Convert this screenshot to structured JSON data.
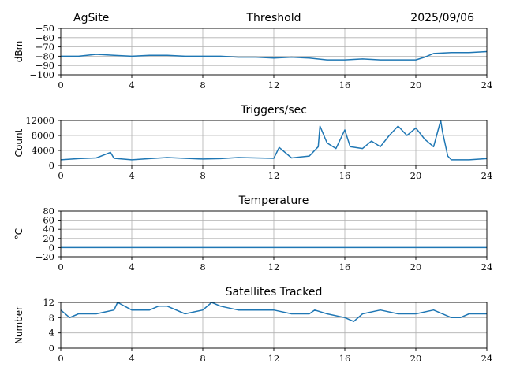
{
  "header": {
    "site": "AgSite",
    "date": "2025/09/06"
  },
  "colors": {
    "series": "#1f77b4",
    "grid": "#b0b0b0"
  },
  "chart_data": [
    {
      "id": "threshold",
      "type": "line",
      "title": "Threshold",
      "xlabel": "",
      "ylabel": "dBm",
      "xlim": [
        0,
        24
      ],
      "ylim": [
        -100,
        -50
      ],
      "xticks": [
        0,
        4,
        8,
        12,
        16,
        20,
        24
      ],
      "yticks": [
        -50,
        -60,
        -70,
        -80,
        -90,
        -100
      ],
      "ytick_labels": [
        "−50",
        "−60",
        "−70",
        "−80",
        "−90",
        "−100"
      ],
      "grid": true,
      "series": [
        {
          "name": "Threshold",
          "x": [
            0,
            1,
            2,
            3,
            4,
            5,
            6,
            7,
            8,
            9,
            10,
            11,
            12,
            13,
            14,
            15,
            16,
            17,
            18,
            19,
            20,
            20.5,
            21,
            22,
            23,
            24
          ],
          "y": [
            -80,
            -80,
            -78,
            -79,
            -80,
            -79,
            -79,
            -80,
            -80,
            -80,
            -81,
            -81,
            -82,
            -81,
            -82,
            -84,
            -84,
            -83,
            -84,
            -84,
            -84,
            -81,
            -77,
            -76,
            -76,
            -75
          ]
        }
      ]
    },
    {
      "id": "triggers",
      "type": "line",
      "title": "Triggers/sec",
      "xlabel": "",
      "ylabel": "Count",
      "xlim": [
        0,
        24
      ],
      "ylim": [
        0,
        12000
      ],
      "xticks": [
        0,
        4,
        8,
        12,
        16,
        20,
        24
      ],
      "yticks": [
        0,
        4000,
        8000,
        12000
      ],
      "ytick_labels": [
        "0",
        "4000",
        "8000",
        "12000"
      ],
      "grid": true,
      "series": [
        {
          "name": "Triggers",
          "x": [
            0,
            1,
            2,
            2.8,
            3,
            4,
            5,
            6,
            7,
            8,
            9,
            10,
            11,
            12,
            12.3,
            13,
            14,
            14.5,
            14.6,
            15,
            15.5,
            16,
            16.3,
            17,
            17.5,
            18,
            18.5,
            19,
            19.5,
            20,
            20.5,
            21,
            21.4,
            21.5,
            21.8,
            22,
            23,
            24
          ],
          "y": [
            1500,
            1800,
            2000,
            3500,
            1900,
            1500,
            1800,
            2100,
            1900,
            1700,
            1800,
            2100,
            2000,
            1900,
            4800,
            2000,
            2500,
            5000,
            10500,
            6000,
            4500,
            9500,
            5000,
            4500,
            6500,
            5000,
            8000,
            10500,
            8000,
            10000,
            7000,
            5000,
            12000,
            9000,
            2500,
            1500,
            1500,
            1800
          ]
        }
      ]
    },
    {
      "id": "temperature",
      "type": "line",
      "title": "Temperature",
      "xlabel": "",
      "ylabel": "°C",
      "xlim": [
        0,
        24
      ],
      "ylim": [
        -20,
        80
      ],
      "xticks": [
        0,
        4,
        8,
        12,
        16,
        20,
        24
      ],
      "yticks": [
        -20,
        0,
        20,
        40,
        60,
        80
      ],
      "ytick_labels": [
        "−20",
        "0",
        "20",
        "40",
        "60",
        "80"
      ],
      "grid": true,
      "series": [
        {
          "name": "Temperature",
          "x": [
            0,
            24
          ],
          "y": [
            0,
            0
          ]
        }
      ]
    },
    {
      "id": "satellites",
      "type": "line",
      "title": "Satellites Tracked",
      "xlabel": "",
      "ylabel": "Number",
      "xlim": [
        0,
        24
      ],
      "ylim": [
        0,
        12
      ],
      "xticks": [
        0,
        4,
        8,
        12,
        16,
        20,
        24
      ],
      "yticks": [
        0,
        4,
        8,
        12
      ],
      "ytick_labels": [
        "0",
        "4",
        "8",
        "12"
      ],
      "grid": true,
      "series": [
        {
          "name": "Satellites",
          "x": [
            0,
            0.5,
            1,
            2,
            3,
            3.2,
            4,
            5,
            5.5,
            6,
            7,
            8,
            8.5,
            9,
            10,
            11,
            12,
            13,
            14,
            14.3,
            15,
            16,
            16.5,
            17,
            18,
            19,
            20,
            21,
            22,
            22.5,
            23,
            24
          ],
          "y": [
            10,
            8,
            9,
            9,
            10,
            12,
            10,
            10,
            11,
            11,
            9,
            10,
            12,
            11,
            10,
            10,
            10,
            9,
            9,
            10,
            9,
            8,
            7,
            9,
            10,
            9,
            9,
            10,
            8,
            8,
            9,
            9
          ]
        }
      ]
    }
  ]
}
